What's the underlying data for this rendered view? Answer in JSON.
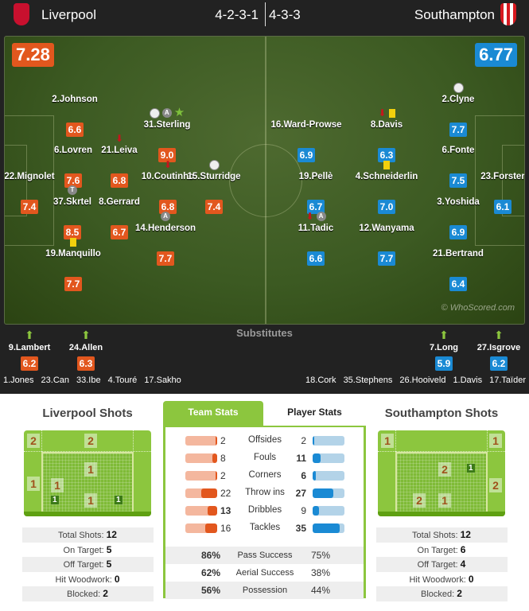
{
  "header": {
    "home_team": "Liverpool",
    "away_team": "Southampton",
    "home_formation": "4-2-3-1",
    "away_formation": "4-3-3",
    "home_color": "#e2571e",
    "away_color": "#1a8ad4"
  },
  "pitch": {
    "home_rating": "7.28",
    "away_rating": "6.77",
    "watermark": "© WhoScored.com",
    "home_players": [
      {
        "name": "2.Johnson",
        "rating": "6.6",
        "icons": []
      },
      {
        "name": "31.Sterling",
        "rating": "9.0",
        "icons": [
          "goal",
          "assist",
          "motm"
        ]
      },
      {
        "name": "6.Lovren",
        "rating": "7.6",
        "icons": []
      },
      {
        "name": "21.Leiva",
        "rating": "6.8",
        "icons": [
          "subout"
        ]
      },
      {
        "name": "22.Mignolet",
        "rating": "7.4",
        "icons": []
      },
      {
        "name": "10.Coutinho",
        "rating": "6.8",
        "icons": [
          "subout"
        ]
      },
      {
        "name": "15.Sturridge",
        "rating": "7.4",
        "icons": [
          "goal"
        ]
      },
      {
        "name": "37.Skrtel",
        "rating": "8.5",
        "icons": [
          "captain"
        ]
      },
      {
        "name": "8.Gerrard",
        "rating": "6.7",
        "icons": []
      },
      {
        "name": "14.Henderson",
        "rating": "7.7",
        "icons": [
          "assist"
        ]
      },
      {
        "name": "19.Manquillo",
        "rating": "7.7",
        "icons": [
          "yellow"
        ]
      }
    ],
    "away_players": [
      {
        "name": "2.Clyne",
        "rating": "7.7",
        "icons": [
          "goal"
        ]
      },
      {
        "name": "16.Ward-Prowse",
        "rating": "6.9",
        "icons": []
      },
      {
        "name": "8.Davis",
        "rating": "6.3",
        "icons": [
          "subout",
          "yellow"
        ]
      },
      {
        "name": "6.Fonte",
        "rating": "7.5",
        "icons": []
      },
      {
        "name": "19.Pellè",
        "rating": "6.7",
        "icons": []
      },
      {
        "name": "4.Schneiderlin",
        "rating": "7.0",
        "icons": [
          "yellow"
        ]
      },
      {
        "name": "23.Forster",
        "rating": "6.1",
        "icons": []
      },
      {
        "name": "3.Yoshida",
        "rating": "6.9",
        "icons": []
      },
      {
        "name": "11.Tadic",
        "rating": "6.6",
        "icons": [
          "subout",
          "assist"
        ]
      },
      {
        "name": "12.Wanyama",
        "rating": "7.7",
        "icons": []
      },
      {
        "name": "21.Bertrand",
        "rating": "6.4",
        "icons": []
      }
    ]
  },
  "substitutes": {
    "title": "Substitutes",
    "home_used": [
      {
        "name": "9.Lambert",
        "rating": "6.2"
      },
      {
        "name": "24.Allen",
        "rating": "6.3"
      }
    ],
    "away_used": [
      {
        "name": "7.Long",
        "rating": "5.9"
      },
      {
        "name": "27.Isgrove",
        "rating": "6.2"
      }
    ],
    "home_bench": [
      "1.Jones",
      "23.Can",
      "33.Ibe",
      "4.Touré",
      "17.Sakho"
    ],
    "away_bench": [
      "18.Cork",
      "35.Stephens",
      "26.Hooiveld",
      "1.Davis",
      "17.Taïder"
    ]
  },
  "home_shots": {
    "title": "Liverpool Shots",
    "zones": [
      "2",
      "2",
      "1",
      "1",
      "1",
      "1"
    ],
    "goals": [
      "1",
      "1"
    ],
    "stats": [
      {
        "label": "Total Shots:",
        "value": "12"
      },
      {
        "label": "On Target:",
        "value": "5"
      },
      {
        "label": "Off Target:",
        "value": "5"
      },
      {
        "label": "Hit Woodwork:",
        "value": "0"
      },
      {
        "label": "Blocked:",
        "value": "2"
      }
    ]
  },
  "away_shots": {
    "title": "Southampton Shots",
    "zones": [
      "1",
      "1",
      "2",
      "2",
      "2",
      "1"
    ],
    "goals": [
      "1"
    ],
    "stats": [
      {
        "label": "Total Shots:",
        "value": "12"
      },
      {
        "label": "On Target:",
        "value": "6"
      },
      {
        "label": "Off Target:",
        "value": "4"
      },
      {
        "label": "Hit Woodwork:",
        "value": "0"
      },
      {
        "label": "Blocked:",
        "value": "2"
      }
    ]
  },
  "team_stats": {
    "tabs": [
      "Team Stats",
      "Player Stats"
    ],
    "active_tab": "Team Stats",
    "rows": [
      {
        "label": "Offsides",
        "home": "2",
        "away": "2",
        "home_fill": 0.02,
        "away_fill": 0.02
      },
      {
        "label": "Fouls",
        "home": "8",
        "away": "11",
        "home_fill": 0.15,
        "away_fill": 0.25
      },
      {
        "label": "Corners",
        "home": "2",
        "away": "6",
        "home_fill": 0.02,
        "away_fill": 0.1
      },
      {
        "label": "Throw ins",
        "home": "22",
        "away": "27",
        "home_fill": 0.5,
        "away_fill": 0.65
      },
      {
        "label": "Dribbles",
        "home": "13",
        "away": "9",
        "home_fill": 0.3,
        "away_fill": 0.2
      },
      {
        "label": "Tackles",
        "home": "16",
        "away": "35",
        "home_fill": 0.37,
        "away_fill": 0.85
      }
    ],
    "percentages": [
      {
        "label": "Pass Success",
        "home": "86%",
        "away": "75%"
      },
      {
        "label": "Aerial Success",
        "home": "62%",
        "away": "38%"
      },
      {
        "label": "Possession",
        "home": "56%",
        "away": "44%"
      }
    ]
  }
}
